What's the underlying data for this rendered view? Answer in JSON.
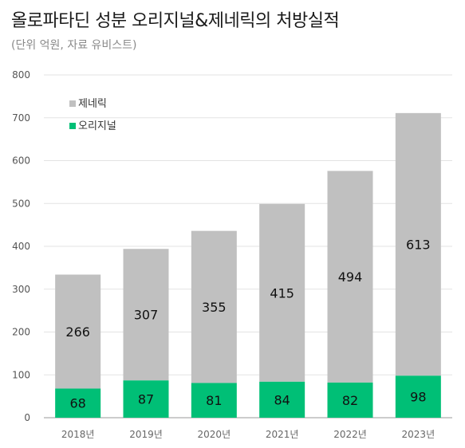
{
  "title": "올로파타딘 성분 오리지널&제네릭의 처방실적",
  "subtitle": "(단위 억원, 자료 유비스트)",
  "colors": {
    "generic": "#c0c0c0",
    "original": "#00bf76",
    "grid": "#e3e3e3",
    "axis": "#999999"
  },
  "chart_data": {
    "type": "bar",
    "stacked": true,
    "categories": [
      "2018년",
      "2019년",
      "2020년",
      "2021년",
      "2022년",
      "2023년"
    ],
    "series": [
      {
        "name": "오리지널",
        "color": "#00bf76",
        "values": [
          68,
          87,
          81,
          84,
          82,
          98
        ]
      },
      {
        "name": "제네릭",
        "color": "#c0c0c0",
        "values": [
          266,
          307,
          355,
          415,
          494,
          613
        ]
      }
    ],
    "ylim": [
      0,
      800
    ],
    "yticks": [
      "0",
      "100",
      "200",
      "300",
      "400",
      "500",
      "600",
      "700",
      "800"
    ],
    "grid": true,
    "legend": {
      "position": "top-left",
      "entries": [
        "제네릭",
        "오리지널"
      ]
    }
  }
}
